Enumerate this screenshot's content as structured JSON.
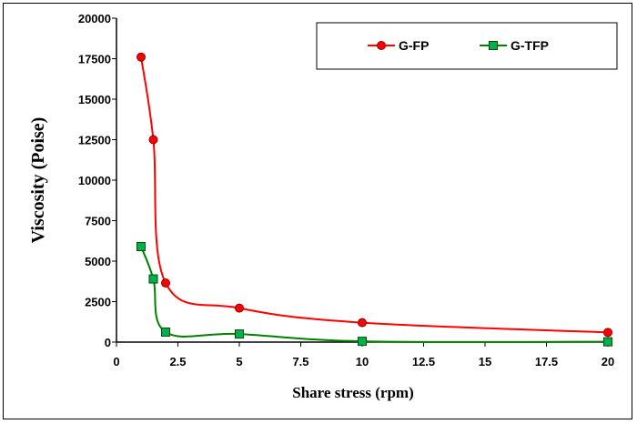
{
  "chart_data": {
    "type": "line",
    "xlabel": "Share stress  (rpm)",
    "ylabel": "Viscosity (Poise)",
    "xlim": [
      0,
      20
    ],
    "ylim": [
      0,
      20000
    ],
    "xticks": [
      0,
      2.5,
      5,
      7.5,
      10,
      12.5,
      15,
      17.5,
      20
    ],
    "yticks": [
      0,
      2500,
      5000,
      7500,
      10000,
      12500,
      15000,
      17500,
      20000
    ],
    "legend_position": "top-right",
    "grid": false,
    "series": [
      {
        "name": "G-FP",
        "marker": "circle",
        "color": "#ff0000",
        "x": [
          1,
          1.5,
          2,
          5,
          10,
          20
        ],
        "y": [
          17600,
          12500,
          3650,
          2100,
          1200,
          600
        ]
      },
      {
        "name": "G-TFP",
        "marker": "square",
        "color": "#008000",
        "fill": "#00b050",
        "x": [
          1,
          1.5,
          2,
          5,
          10,
          20
        ],
        "y": [
          5900,
          3900,
          620,
          500,
          50,
          20
        ]
      }
    ]
  }
}
